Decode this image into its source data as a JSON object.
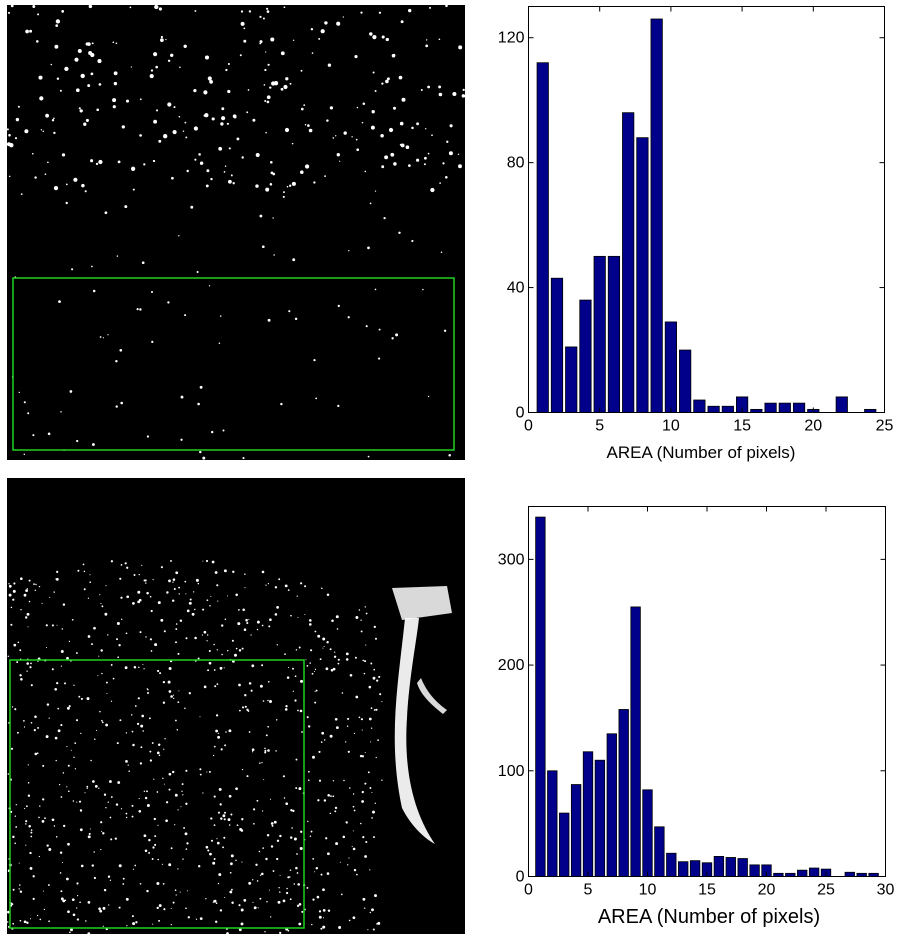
{
  "colors": {
    "bar_fill": "#00008b",
    "bar_stroke": "#000000",
    "roi_box": "#1fd31f",
    "image_background": "#000000",
    "speckle": "#ffffff"
  },
  "images": [
    {
      "name": "binary-particle-image-top",
      "roi": "green rectangle over lower region"
    },
    {
      "name": "binary-particle-image-bottom",
      "roi": "green rectangle over left region"
    }
  ],
  "chart_data": [
    {
      "type": "bar",
      "xlabel": "AREA (Number of pixels)",
      "ylabel": "",
      "title": "",
      "xlim": [
        0,
        25
      ],
      "ylim": [
        0,
        130
      ],
      "xticks": [
        0,
        5,
        10,
        15,
        20,
        25
      ],
      "yticks": [
        0,
        40,
        80,
        120
      ],
      "x": [
        1,
        2,
        3,
        4,
        5,
        6,
        7,
        8,
        9,
        10,
        11,
        12,
        13,
        14,
        15,
        16,
        17,
        18,
        19,
        20,
        21,
        22,
        23,
        24
      ],
      "values": [
        112,
        43,
        21,
        36,
        50,
        50,
        96,
        88,
        126,
        29,
        20,
        4,
        2,
        2,
        5,
        1,
        3,
        3,
        3,
        1,
        0,
        5,
        0,
        1
      ],
      "grid": false
    },
    {
      "type": "bar",
      "xlabel": "AREA (Number of pixels)",
      "ylabel": "",
      "title": "",
      "xlim": [
        0,
        30
      ],
      "ylim": [
        0,
        350
      ],
      "xticks": [
        0,
        5,
        10,
        15,
        20,
        25,
        30
      ],
      "yticks": [
        0,
        100,
        200,
        300
      ],
      "x": [
        1,
        2,
        3,
        4,
        5,
        6,
        7,
        8,
        9,
        10,
        11,
        12,
        13,
        14,
        15,
        16,
        17,
        18,
        19,
        20,
        21,
        22,
        23,
        24,
        25,
        26,
        27,
        28,
        29
      ],
      "values": [
        340,
        100,
        60,
        87,
        118,
        110,
        135,
        158,
        255,
        82,
        47,
        22,
        14,
        15,
        13,
        19,
        18,
        17,
        11,
        11,
        3,
        3,
        6,
        8,
        7,
        0,
        4,
        3,
        3
      ],
      "grid": false
    }
  ]
}
